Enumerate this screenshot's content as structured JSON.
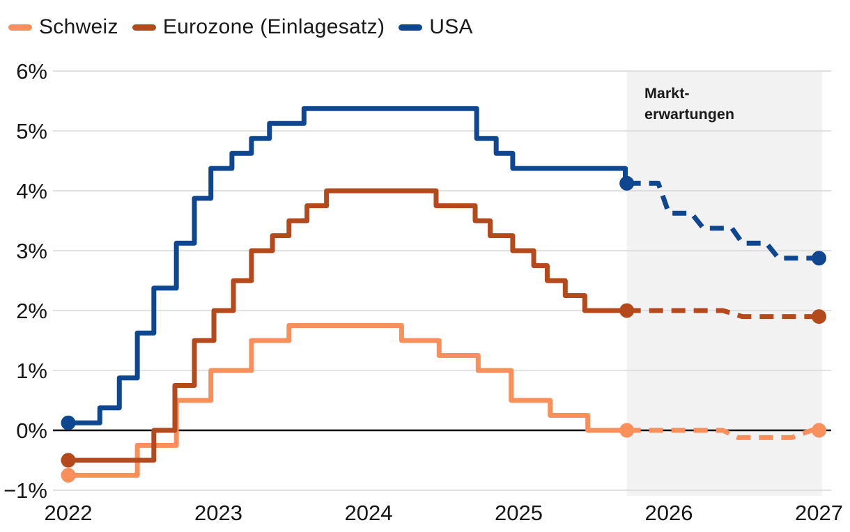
{
  "legend": {
    "items": [
      {
        "id": "schweiz",
        "label": "Schweiz",
        "color": "#F9905C"
      },
      {
        "id": "eurozone",
        "label": "Eurozone (Einlagesatz)",
        "color": "#B4491C"
      },
      {
        "id": "usa",
        "label": "USA",
        "color": "#0E4690"
      }
    ]
  },
  "annotation": {
    "line1": "Markt-",
    "line2": "erwartungen"
  },
  "colors": {
    "shading": "#F2F2F2",
    "grid": "#D7D7D7",
    "zero_line": "#000000",
    "axis_text": "#161616"
  },
  "chart_data": {
    "type": "line",
    "title": "",
    "xlabel": "",
    "ylabel": "",
    "ylim": [
      -1,
      6
    ],
    "xlim": [
      2022,
      2027
    ],
    "grid": true,
    "legend_position": "top-left",
    "unit": "%",
    "forecast_region": {
      "start": 2025.72,
      "end": 2027.02,
      "label": "Markt-erwartungen"
    },
    "y_ticks": [
      {
        "value": 6,
        "label": "6%"
      },
      {
        "value": 5,
        "label": "5%"
      },
      {
        "value": 4,
        "label": "4%"
      },
      {
        "value": 3,
        "label": "3%"
      },
      {
        "value": 2,
        "label": "2%"
      },
      {
        "value": 1,
        "label": "1%"
      },
      {
        "value": 0,
        "label": "0%"
      },
      {
        "value": -1,
        "label": "−1%"
      }
    ],
    "x_ticks": [
      {
        "value": 2022,
        "label": "2022"
      },
      {
        "value": 2023,
        "label": "2023"
      },
      {
        "value": 2024,
        "label": "2024"
      },
      {
        "value": 2025,
        "label": "2025"
      },
      {
        "value": 2026,
        "label": "2026"
      },
      {
        "value": 2027,
        "label": "2027"
      }
    ],
    "series": [
      {
        "id": "schweiz",
        "label": "Schweiz",
        "color": "#F9905C",
        "solid_steps": [
          [
            2022.0,
            -0.75
          ],
          [
            2022.46,
            -0.25
          ],
          [
            2022.72,
            0.5
          ],
          [
            2022.95,
            1.0
          ],
          [
            2023.22,
            1.5
          ],
          [
            2023.47,
            1.75
          ],
          [
            2024.22,
            1.5
          ],
          [
            2024.47,
            1.25
          ],
          [
            2024.73,
            1.0
          ],
          [
            2024.95,
            0.5
          ],
          [
            2025.21,
            0.25
          ],
          [
            2025.46,
            0.0
          ]
        ],
        "dashed_points": [
          [
            2025.72,
            0.0
          ],
          [
            2026.36,
            0.0
          ],
          [
            2026.46,
            -0.12
          ],
          [
            2026.82,
            -0.12
          ],
          [
            2026.95,
            0.0
          ],
          [
            2027.0,
            0.0
          ]
        ]
      },
      {
        "id": "eurozone",
        "label": "Eurozone (Einlagesatz)",
        "color": "#B4491C",
        "solid_steps": [
          [
            2022.0,
            -0.5
          ],
          [
            2022.57,
            0.0
          ],
          [
            2022.71,
            0.75
          ],
          [
            2022.84,
            1.5
          ],
          [
            2022.97,
            2.0
          ],
          [
            2023.1,
            2.5
          ],
          [
            2023.22,
            3.0
          ],
          [
            2023.36,
            3.25
          ],
          [
            2023.47,
            3.5
          ],
          [
            2023.59,
            3.75
          ],
          [
            2023.72,
            4.0
          ],
          [
            2024.45,
            3.75
          ],
          [
            2024.71,
            3.5
          ],
          [
            2024.81,
            3.25
          ],
          [
            2024.96,
            3.0
          ],
          [
            2025.1,
            2.75
          ],
          [
            2025.19,
            2.5
          ],
          [
            2025.31,
            2.25
          ],
          [
            2025.44,
            2.0
          ]
        ],
        "dashed_points": [
          [
            2025.72,
            2.0
          ],
          [
            2026.36,
            2.0
          ],
          [
            2026.49,
            1.9
          ],
          [
            2027.0,
            1.9
          ]
        ]
      },
      {
        "id": "usa",
        "label": "USA",
        "color": "#0E4690",
        "solid_steps": [
          [
            2022.0,
            0.125
          ],
          [
            2022.21,
            0.375
          ],
          [
            2022.34,
            0.875
          ],
          [
            2022.46,
            1.625
          ],
          [
            2022.57,
            2.375
          ],
          [
            2022.72,
            3.125
          ],
          [
            2022.84,
            3.875
          ],
          [
            2022.95,
            4.375
          ],
          [
            2023.09,
            4.625
          ],
          [
            2023.22,
            4.875
          ],
          [
            2023.34,
            5.125
          ],
          [
            2023.57,
            5.375
          ],
          [
            2024.72,
            4.875
          ],
          [
            2024.85,
            4.625
          ],
          [
            2024.96,
            4.375
          ],
          [
            2025.71,
            4.125
          ]
        ],
        "dashed_points": [
          [
            2025.72,
            4.125
          ],
          [
            2025.93,
            4.125
          ],
          [
            2026.0,
            3.625
          ],
          [
            2026.15,
            3.625
          ],
          [
            2026.23,
            3.375
          ],
          [
            2026.42,
            3.375
          ],
          [
            2026.49,
            3.125
          ],
          [
            2026.65,
            3.125
          ],
          [
            2026.73,
            2.875
          ],
          [
            2027.0,
            2.875
          ]
        ]
      }
    ]
  }
}
